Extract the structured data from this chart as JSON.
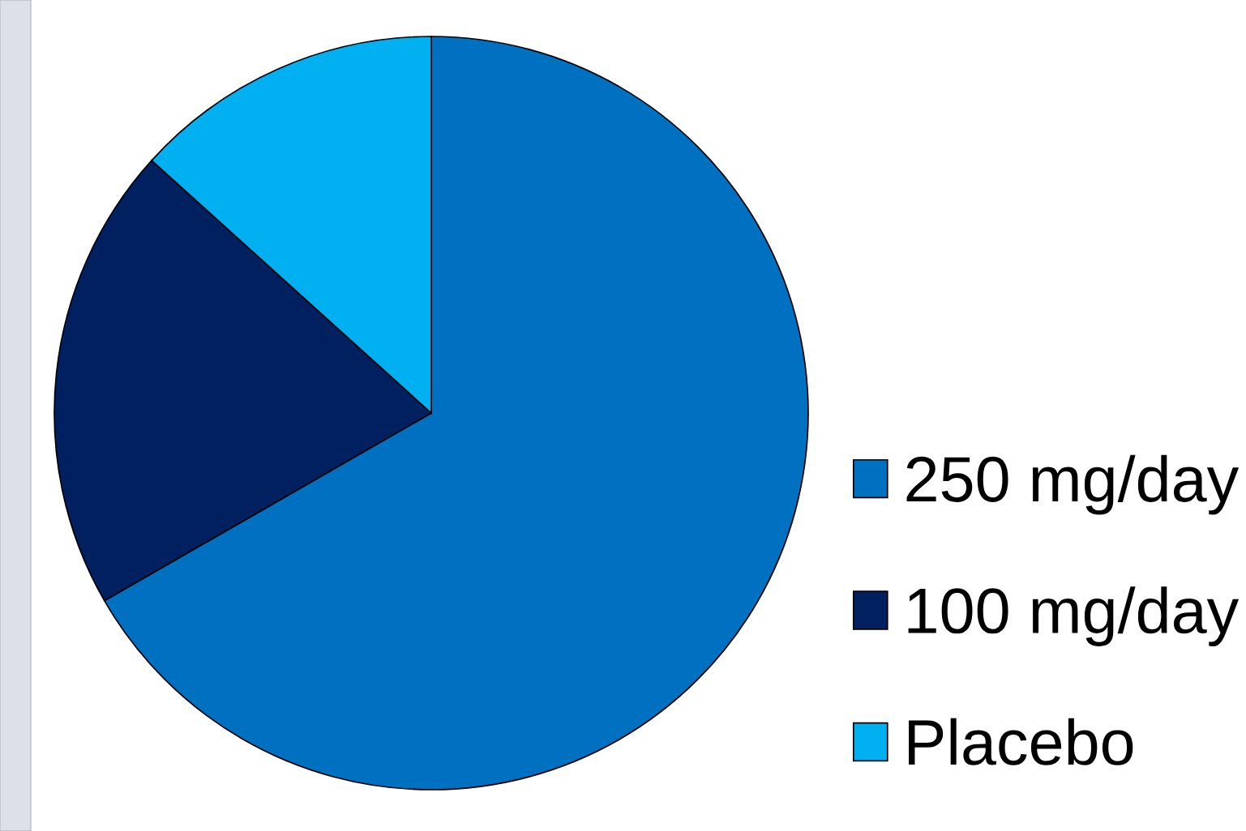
{
  "chart_data": {
    "type": "pie",
    "categories": [
      "250 mg/day",
      "100 mg/day",
      "Placebo"
    ],
    "values": [
      66.7,
      20.0,
      13.3
    ],
    "colors": [
      "#0070c0",
      "#002060",
      "#00b0f0"
    ],
    "legend": "right"
  }
}
